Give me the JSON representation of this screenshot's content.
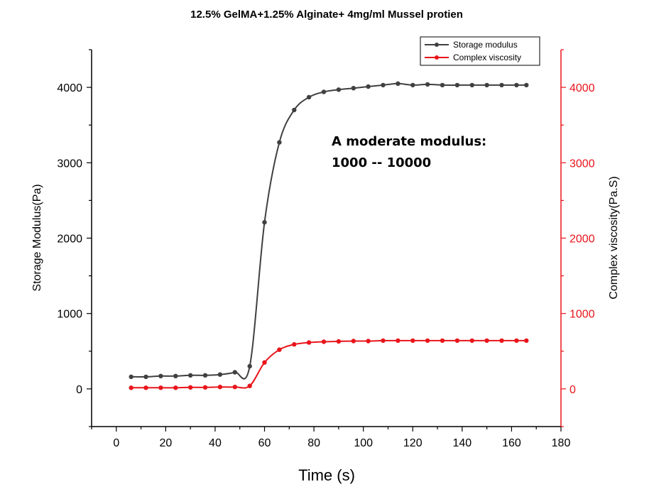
{
  "chart_data": {
    "type": "line",
    "title": "12.5% GelMA+1.25% Alginate+ 4mg/ml Mussel protien",
    "xlabel": "Time (s)",
    "ylabel": "Storage Modulus(Pa)",
    "y2label": "Complex viscosity(Pa.S)",
    "xlim": [
      -10,
      180
    ],
    "ylim": [
      -500,
      4500
    ],
    "y2lim": [
      -500,
      4500
    ],
    "xticks": [
      0,
      20,
      40,
      60,
      80,
      100,
      120,
      140,
      160,
      180
    ],
    "yticks": [
      0,
      1000,
      2000,
      3000,
      4000
    ],
    "y2ticks": [
      0,
      1000,
      2000,
      3000,
      4000
    ],
    "legend_position": "top-right",
    "annotation": [
      "A moderate modulus:",
      "1000 -- 10000"
    ],
    "series": [
      {
        "name": "Storage modulus",
        "axis": "left",
        "color": "#404040",
        "x": [
          6,
          12,
          18,
          24,
          30,
          36,
          42,
          48,
          54,
          60,
          66,
          72,
          78,
          84,
          90,
          96,
          102,
          108,
          114,
          120,
          126,
          132,
          138,
          144,
          150,
          156,
          162,
          166
        ],
        "y": [
          160,
          160,
          170,
          170,
          180,
          180,
          190,
          220,
          300,
          2210,
          3270,
          3700,
          3870,
          3940,
          3970,
          3990,
          4010,
          4030,
          4050,
          4030,
          4040,
          4030,
          4030,
          4030,
          4030,
          4030,
          4030,
          4030
        ]
      },
      {
        "name": "Complex viscosity",
        "axis": "right",
        "color": "#e8151b",
        "x": [
          6,
          12,
          18,
          24,
          30,
          36,
          42,
          48,
          54,
          60,
          66,
          72,
          78,
          84,
          90,
          96,
          102,
          108,
          114,
          120,
          126,
          132,
          138,
          144,
          150,
          156,
          162,
          166
        ],
        "y": [
          15,
          15,
          15,
          15,
          20,
          20,
          25,
          25,
          40,
          350,
          520,
          590,
          615,
          625,
          630,
          635,
          635,
          640,
          640,
          640,
          640,
          640,
          640,
          640,
          640,
          640,
          640,
          640
        ]
      }
    ]
  }
}
